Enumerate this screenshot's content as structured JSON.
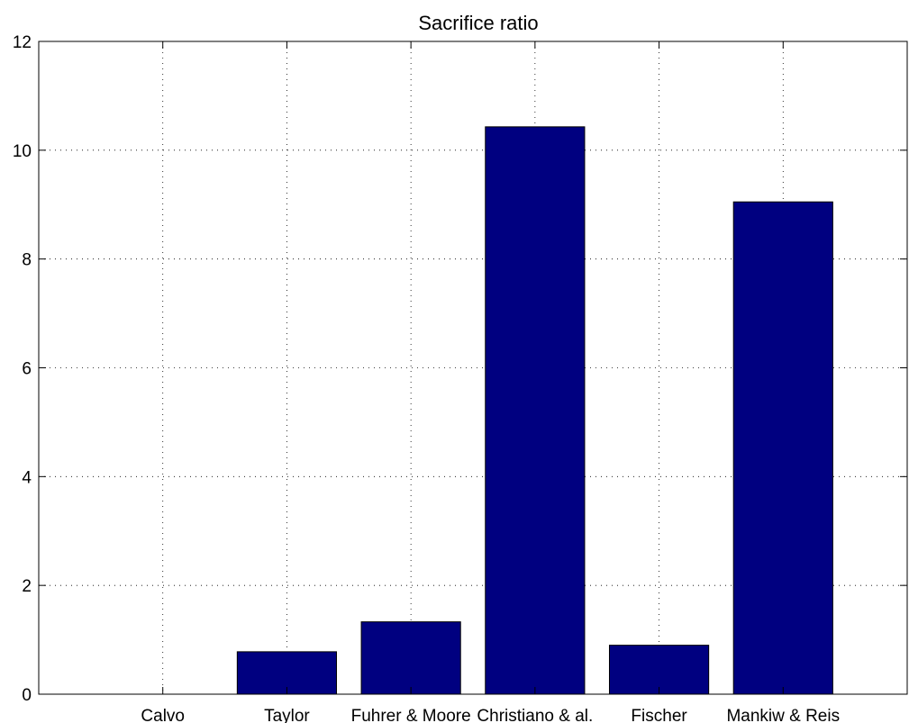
{
  "chart_data": {
    "type": "bar",
    "title": "Sacrifice ratio",
    "xlabel": "",
    "ylabel": "",
    "categories": [
      "Calvo",
      "Taylor",
      "Fuhrer & Moore",
      "Christiano & al.",
      "Fischer",
      "Mankiw & Reis"
    ],
    "values": [
      0,
      0.78,
      1.33,
      10.43,
      0.9,
      9.05
    ],
    "ylim": [
      0,
      12
    ],
    "yticks": [
      0,
      2,
      4,
      6,
      8,
      10,
      12
    ],
    "ytick_labels": [
      "0",
      "2",
      "4",
      "6",
      "8",
      "10",
      "12"
    ],
    "grid": true,
    "legend": "none",
    "bar_color": "#000080"
  }
}
